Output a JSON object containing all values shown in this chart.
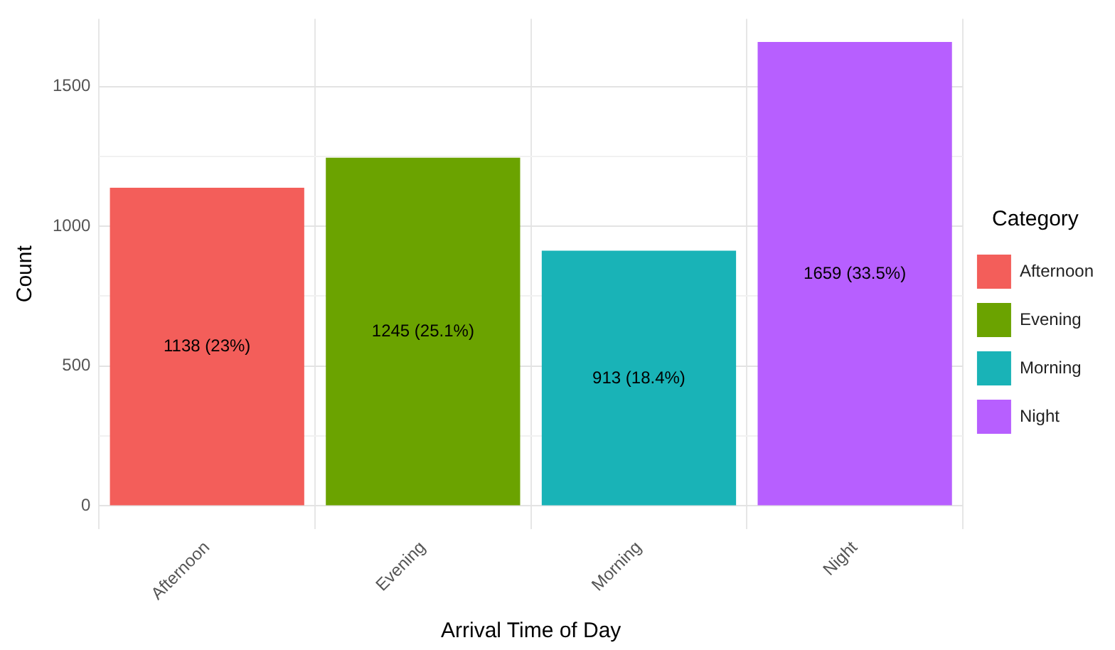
{
  "chart_data": {
    "type": "bar",
    "xlabel": "Arrival Time of Day",
    "ylabel": "Count",
    "legend_title": "Category",
    "categories": [
      "Afternoon",
      "Evening",
      "Morning",
      "Night"
    ],
    "series": [
      {
        "name": "Afternoon",
        "color": "#f35e5a",
        "values": [
          1138,
          null,
          null,
          null
        ],
        "value_labels": [
          "1138 (23%)",
          null,
          null,
          null
        ]
      },
      {
        "name": "Evening",
        "color": "#6ba300",
        "values": [
          null,
          1245,
          null,
          null
        ],
        "value_labels": [
          null,
          "1245 (25.1%)",
          null,
          null
        ]
      },
      {
        "name": "Morning",
        "color": "#19b3b7",
        "values": [
          null,
          null,
          913,
          null
        ],
        "value_labels": [
          null,
          null,
          "913 (18.4%)",
          null
        ]
      },
      {
        "name": "Night",
        "color": "#b75fff",
        "values": [
          null,
          null,
          null,
          1659
        ],
        "value_labels": [
          null,
          null,
          null,
          "1659 (33.5%)"
        ]
      }
    ],
    "ylim": [
      -83,
      1742
    ],
    "yticks": [
      0,
      {
        "value": 250,
        "label": null
      },
      500,
      {
        "value": 750,
        "label": null
      },
      1000,
      {
        "value": 1250,
        "label": null
      },
      1500
    ],
    "grid": true,
    "legend": "right"
  }
}
